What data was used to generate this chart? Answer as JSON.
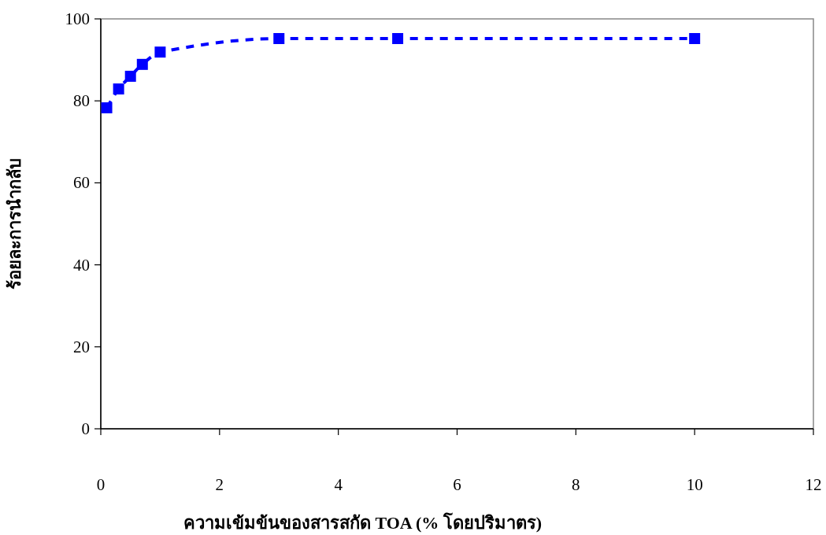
{
  "chart_data": {
    "type": "line",
    "xlabel": "ความเข้มข้นของสารสกัด TOA (% โดยปริมาตร)",
    "ylabel": "ร้อยละการนำกลับ",
    "x": [
      0.1,
      0.3,
      0.5,
      0.7,
      1,
      3,
      5,
      10
    ],
    "series": [
      {
        "color": "#0000ff",
        "values": [
          78.3,
          82.9,
          86,
          88.9,
          91.9,
          95.2,
          95.2,
          95.2
        ]
      }
    ],
    "xlim": [
      0,
      12
    ],
    "xticks": [
      0,
      2,
      4,
      6,
      8,
      10,
      12
    ],
    "ylim": [
      0,
      100
    ],
    "yticks": [
      0,
      20,
      40,
      60,
      80,
      100
    ],
    "marker": "square",
    "line_style": "dashed",
    "grid": false
  }
}
